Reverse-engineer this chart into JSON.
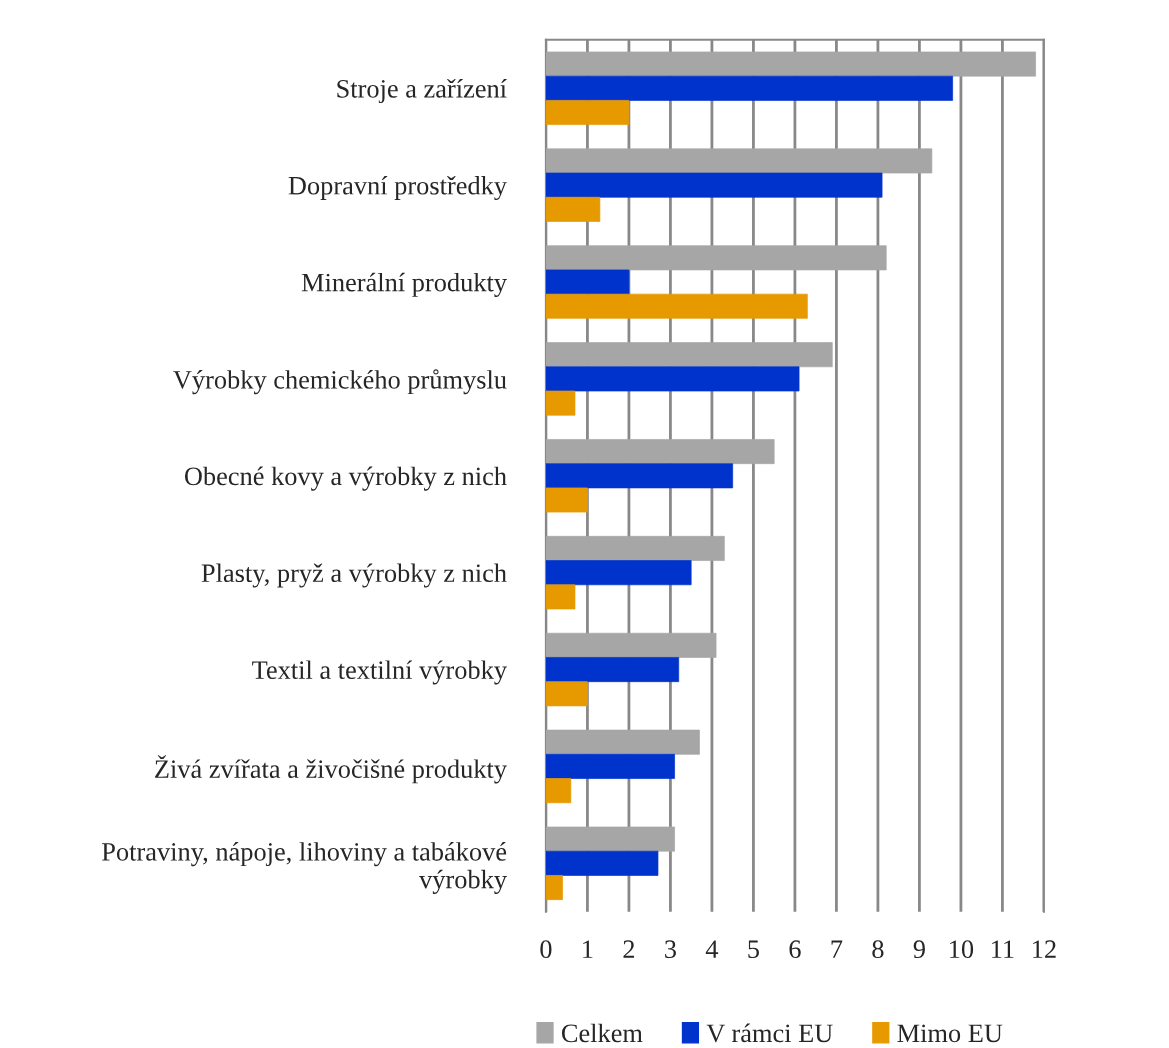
{
  "chart_data": {
    "type": "bar",
    "orientation": "horizontal",
    "categories": [
      "Stroje a zařízení",
      "Dopravní prostředky",
      "Minerální produkty",
      "Výrobky chemického průmyslu",
      "Obecné kovy a výrobky z nich",
      "Plasty, pryž a výrobky z nich",
      "Textil a textilní výrobky",
      "Živá zvířata a živočišné produkty",
      "Potraviny, nápoje, lihoviny a tabákové výrobky"
    ],
    "series": [
      {
        "name": "Celkem",
        "color": "#a6a6a6",
        "values": [
          11.8,
          9.3,
          8.2,
          6.9,
          5.5,
          4.3,
          4.1,
          3.7,
          3.1
        ]
      },
      {
        "name": "V rámci EU",
        "color": "#0033cc",
        "values": [
          9.8,
          8.1,
          2.0,
          6.1,
          4.5,
          3.5,
          3.2,
          3.1,
          2.7
        ]
      },
      {
        "name": "Mimo EU",
        "color": "#e69a00",
        "values": [
          2.0,
          1.3,
          6.3,
          0.7,
          1.0,
          0.7,
          1.0,
          0.6,
          0.4
        ]
      }
    ],
    "xlim": [
      0,
      12
    ],
    "xticks": [
      0,
      1,
      2,
      3,
      4,
      5,
      6,
      7,
      8,
      9,
      10,
      11,
      12
    ],
    "grid": "x",
    "legend": "bottom"
  }
}
